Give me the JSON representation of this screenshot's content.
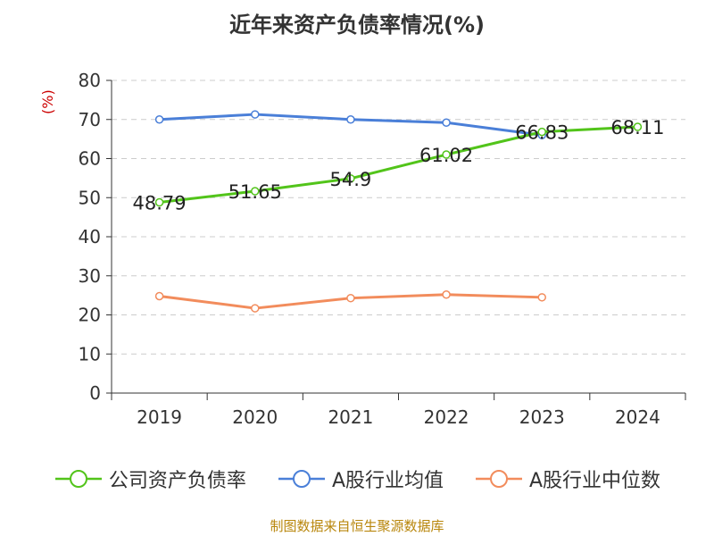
{
  "chart_data": {
    "type": "line",
    "title": "近年来资产负债率情况(%)",
    "ylabel": "(%)",
    "categories": [
      "2019",
      "2020",
      "2021",
      "2022",
      "2023",
      "2024"
    ],
    "ylim": [
      0,
      80
    ],
    "yticks": [
      "0",
      "10",
      "20",
      "30",
      "40",
      "50",
      "60",
      "70",
      "80"
    ],
    "grid": true,
    "legend_position": "bottom",
    "series": [
      {
        "name": "公司资产负债率",
        "color": "#52c41a",
        "values": [
          48.79,
          51.65,
          54.9,
          61.02,
          66.83,
          68.11
        ],
        "labels": [
          "48.79",
          "51.65",
          "54.9",
          "61.02",
          "66.83",
          "68.11"
        ]
      },
      {
        "name": "A股行业均值",
        "color": "#4a7fd8",
        "values": [
          70.0,
          71.3,
          70.0,
          69.2,
          66.0,
          null
        ]
      },
      {
        "name": "A股行业中位数",
        "color": "#f28c5c",
        "values": [
          24.8,
          21.7,
          24.3,
          25.2,
          24.5,
          null
        ]
      }
    ]
  },
  "source": "制图数据来自恒生聚源数据库"
}
